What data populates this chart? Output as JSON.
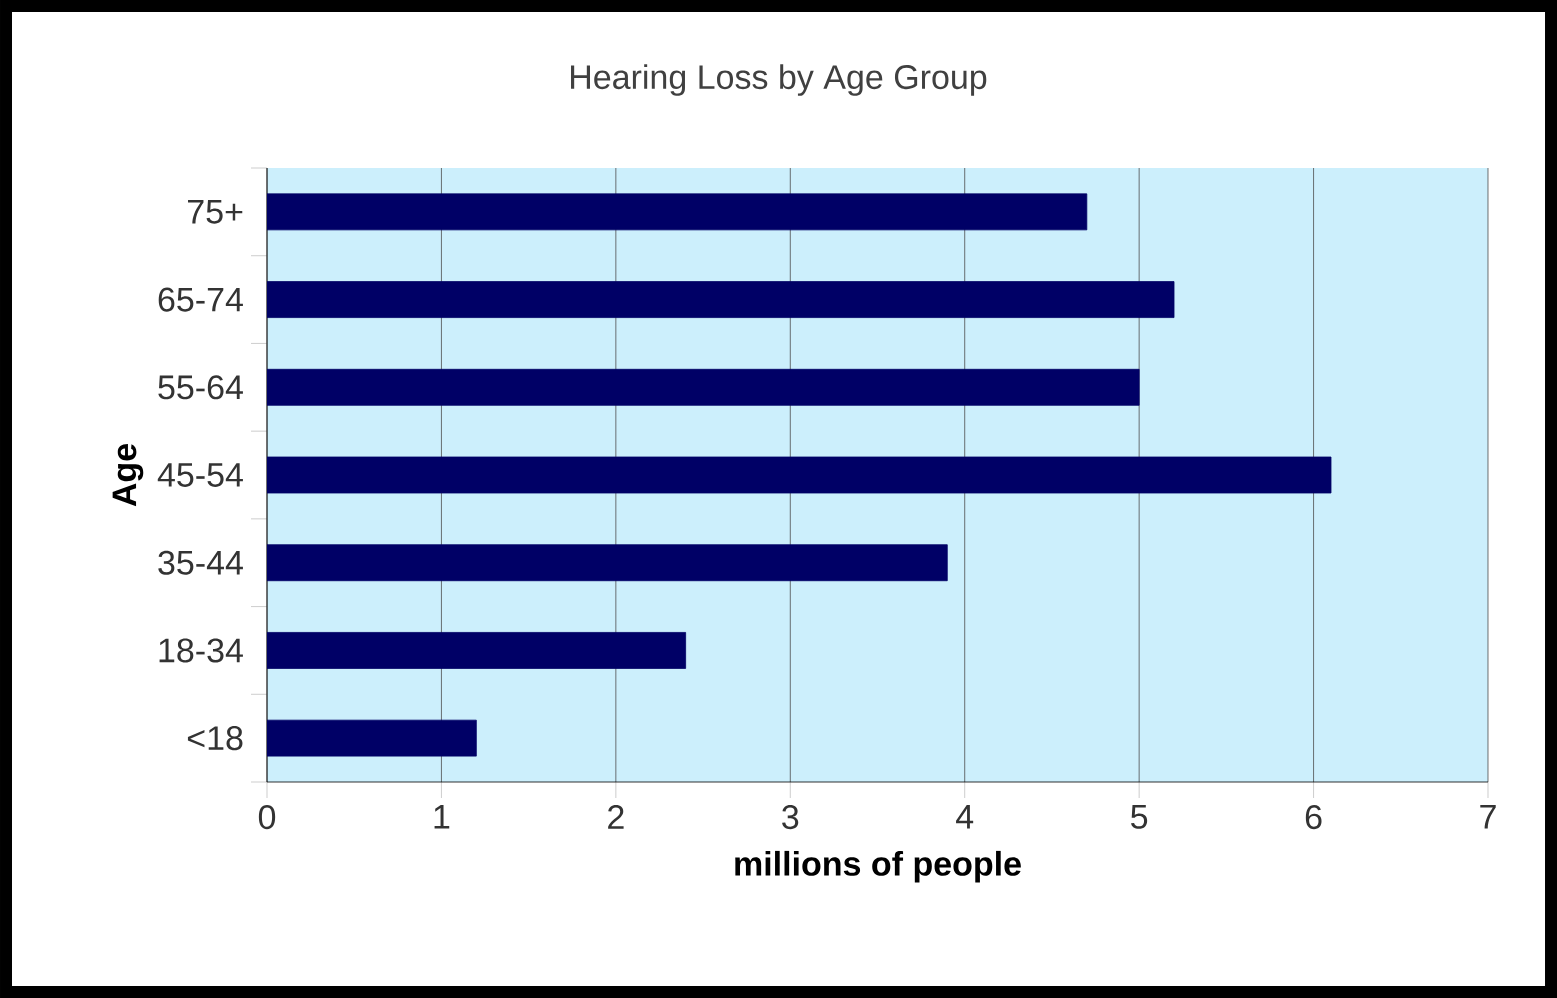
{
  "chart_data": {
    "type": "bar",
    "orientation": "horizontal",
    "title": "Hearing Loss by Age Group",
    "xlabel": "millions of people",
    "ylabel": "Age",
    "categories": [
      "75+",
      "65-74",
      "55-64",
      "45-54",
      "35-44",
      "18-34",
      "<18"
    ],
    "values": [
      4.7,
      5.2,
      5.0,
      6.1,
      3.9,
      2.4,
      1.2
    ],
    "color": "#000066",
    "xlim": [
      0,
      7
    ],
    "xticks": [
      0,
      1,
      2,
      3,
      4,
      5,
      6,
      7
    ],
    "grid": "x"
  }
}
